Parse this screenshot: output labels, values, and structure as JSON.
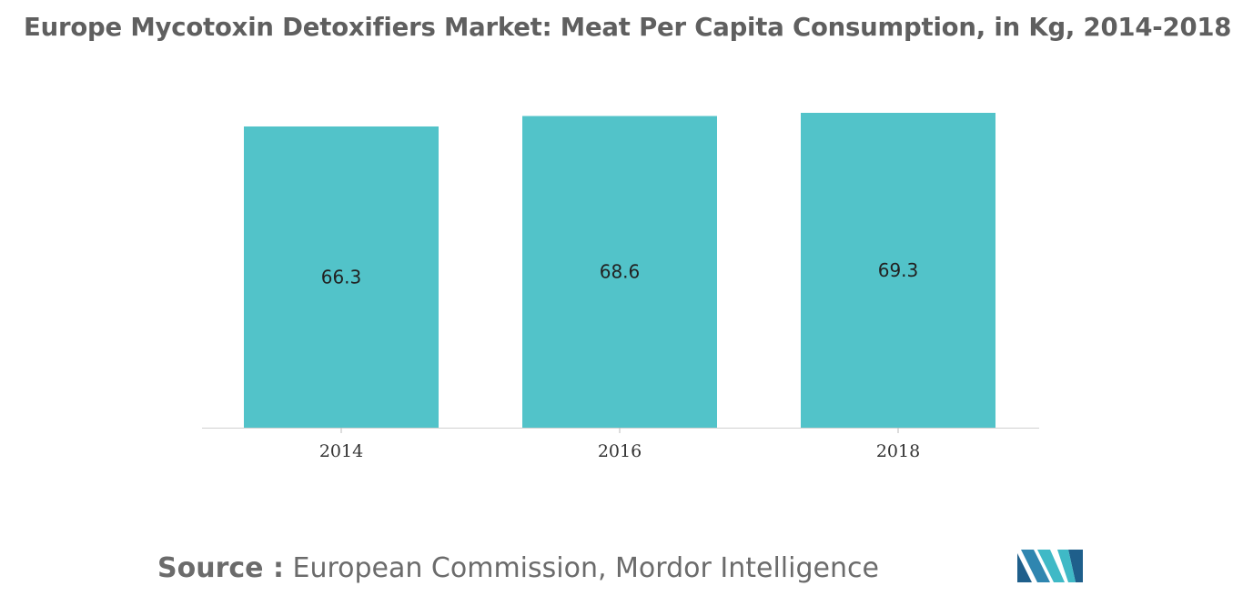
{
  "chart_data": {
    "type": "bar",
    "title": "Europe Mycotoxin Detoxifiers Market: Meat Per Capita Consumption, in Kg, 2014-2018",
    "categories": [
      "2014",
      "2016",
      "2018"
    ],
    "values": [
      66.3,
      68.6,
      69.3
    ],
    "value_labels": [
      "66.3",
      "68.6",
      "69.3"
    ],
    "xlabel": "",
    "ylabel": "",
    "ylim": [
      0,
      70
    ],
    "grid": false,
    "legend": "none",
    "bar_color": "#52c3c9"
  },
  "source": {
    "label": "Source :",
    "text": "European Commission, Mordor Intelligence"
  },
  "logo": {
    "icon": "mordor-intelligence-logo",
    "colors": [
      "#1f5f8b",
      "#3fb9c6"
    ]
  }
}
